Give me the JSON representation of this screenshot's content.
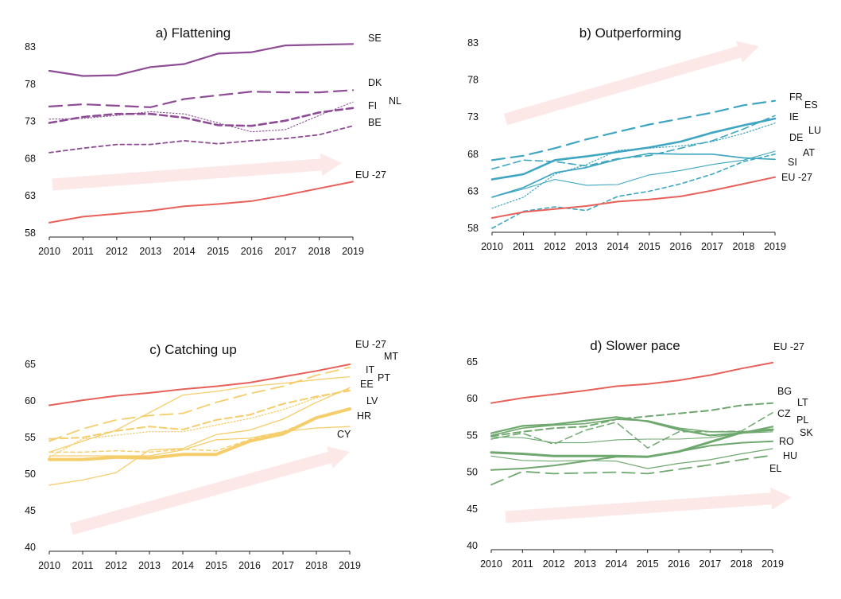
{
  "chart_data": [
    {
      "type": "line",
      "title": "a) Flattening",
      "x": [
        2010,
        2011,
        2012,
        2013,
        2014,
        2015,
        2016,
        2017,
        2018,
        2019
      ],
      "x_tick_labels": [
        "2010",
        "2011",
        "2012",
        "2013",
        "2014",
        "2015",
        "2016",
        "2017",
        "2018",
        "2019"
      ],
      "y_ticks": [
        58,
        63,
        68,
        73,
        78,
        83
      ],
      "ylim": [
        58,
        83
      ],
      "arrow_color": "#fde8e8",
      "series": [
        {
          "name": "SE",
          "color": "#8e4b96",
          "dash": "solid",
          "width": 2.2,
          "values": [
            79.8,
            79.1,
            79.2,
            80.3,
            80.7,
            82.1,
            82.3,
            83.2,
            83.3,
            83.4
          ]
        },
        {
          "name": "DK",
          "color": "#8e4b96",
          "dash": "longdash",
          "width": 2.2,
          "values": [
            75.0,
            75.3,
            75.1,
            74.9,
            76.0,
            76.5,
            77.0,
            76.9,
            76.9,
            77.2
          ]
        },
        {
          "name": "FI",
          "color": "#8e4b96",
          "dash": "dash",
          "width": 2.6,
          "values": [
            72.8,
            73.6,
            74.0,
            74.0,
            73.5,
            72.5,
            72.4,
            73.1,
            74.2,
            74.8
          ]
        },
        {
          "name": "NL",
          "color": "#8e4b96",
          "dash": "dot",
          "width": 1.1,
          "values": [
            73.3,
            73.4,
            73.8,
            74.3,
            74.0,
            72.8,
            71.6,
            71.9,
            73.8,
            75.6
          ]
        },
        {
          "name": "BE",
          "color": "#8e4b96",
          "dash": "shortdash",
          "width": 1.8,
          "values": [
            68.8,
            69.4,
            69.9,
            69.9,
            70.4,
            70.0,
            70.4,
            70.7,
            71.2,
            72.4
          ]
        },
        {
          "name": "EU -27",
          "color": "#e8605a",
          "dash": "solid",
          "width": 2.0,
          "values": [
            59.4,
            60.2,
            60.6,
            61.0,
            61.6,
            61.9,
            62.3,
            63.1,
            64.0,
            64.9
          ]
        }
      ],
      "labels": [
        "SE",
        "DK",
        "FI",
        "NL",
        "BE",
        "EU -27"
      ]
    },
    {
      "type": "line",
      "title": "b) Outperforming",
      "x": [
        2010,
        2011,
        2012,
        2013,
        2014,
        2015,
        2016,
        2017,
        2018,
        2019
      ],
      "x_tick_labels": [
        "2010",
        "2011",
        "2012",
        "2013",
        "2014",
        "2015",
        "2016",
        "2017",
        "2018",
        "2019"
      ],
      "y_ticks": [
        58,
        63,
        68,
        73,
        78,
        83
      ],
      "ylim": [
        58,
        83
      ],
      "arrow_color": "#fde8e8",
      "series": [
        {
          "name": "FR",
          "color": "#3ea6c0",
          "dash": "longdash",
          "width": 2.2,
          "values": [
            67.2,
            67.8,
            68.8,
            70.0,
            71.0,
            72.0,
            72.8,
            73.6,
            74.6,
            75.2
          ]
        },
        {
          "name": "ES",
          "color": "#3ea6c0",
          "dash": "shortdash",
          "width": 1.6,
          "values": [
            58.0,
            60.3,
            60.9,
            60.4,
            62.3,
            63.0,
            64.0,
            65.3,
            67.0,
            68.0
          ]
        },
        {
          "name": "IE",
          "color": "#3ea6c0",
          "dash": "dash",
          "width": 1.6,
          "values": [
            66.0,
            67.2,
            67.0,
            66.4,
            67.4,
            67.8,
            68.8,
            69.8,
            71.4,
            73.2
          ]
        },
        {
          "name": "DE",
          "color": "#3ea6c0",
          "dash": "solid",
          "width": 2.6,
          "values": [
            64.6,
            65.3,
            67.2,
            67.7,
            68.3,
            68.9,
            69.7,
            70.9,
            71.9,
            72.8
          ]
        },
        {
          "name": "LU",
          "color": "#3ea6c0",
          "dash": "dot",
          "width": 1.2,
          "values": [
            60.7,
            62.2,
            65.3,
            66.6,
            68.5,
            68.8,
            69.1,
            69.7,
            70.8,
            72.2
          ]
        },
        {
          "name": "AT",
          "color": "#3ea6c0",
          "dash": "solid",
          "width": 1.1,
          "values": [
            62.2,
            63.3,
            64.6,
            63.8,
            63.9,
            65.2,
            65.8,
            66.6,
            67.2,
            68.4
          ]
        },
        {
          "name": "SI",
          "color": "#3ea6c0",
          "dash": "solid",
          "width": 1.7,
          "values": [
            62.2,
            63.5,
            65.5,
            66.2,
            67.3,
            68.1,
            68.0,
            68.0,
            67.5,
            67.3
          ]
        },
        {
          "name": "EU -27",
          "color": "#e8605a",
          "dash": "solid",
          "width": 2.0,
          "values": [
            59.4,
            60.2,
            60.6,
            61.0,
            61.6,
            61.9,
            62.3,
            63.1,
            64.0,
            64.9
          ]
        }
      ],
      "labels": [
        "FR",
        "ES",
        "IE",
        "LU",
        "DE",
        "AT",
        "SI",
        "EU -27"
      ]
    },
    {
      "type": "line",
      "title": "c) Catching up",
      "x": [
        2010,
        2011,
        2012,
        2013,
        2014,
        2015,
        2016,
        2017,
        2018,
        2019
      ],
      "x_tick_labels": [
        "2010",
        "2011",
        "2012",
        "2013",
        "2014",
        "2015",
        "2016",
        "2017",
        "2018",
        "2019"
      ],
      "y_ticks": [
        40,
        45,
        50,
        55,
        60,
        65
      ],
      "ylim": [
        40,
        65
      ],
      "arrow_color": "#fde8e8",
      "series": [
        {
          "name": "EU -27",
          "color": "#e8605a",
          "dash": "solid",
          "width": 2.0,
          "values": [
            59.4,
            60.1,
            60.7,
            61.1,
            61.6,
            62.0,
            62.5,
            63.3,
            64.1,
            65.0
          ]
        },
        {
          "name": "MT",
          "color": "#f5cd6a",
          "dash": "longdash",
          "width": 1.8,
          "values": [
            54.5,
            56.2,
            57.4,
            58.0,
            58.3,
            59.8,
            61.0,
            62.0,
            63.5,
            64.6
          ]
        },
        {
          "name": "IT",
          "color": "#f5cd6a",
          "dash": "solid",
          "width": 1.3,
          "values": [
            53.0,
            54.5,
            56.0,
            58.4,
            60.8,
            61.3,
            62.0,
            62.4,
            62.9,
            63.3
          ]
        },
        {
          "name": "PT",
          "color": "#f5cd6a",
          "dash": "solid",
          "width": 1.3,
          "values": [
            48.5,
            49.2,
            50.2,
            53.3,
            53.5,
            55.4,
            56.0,
            57.5,
            59.8,
            61.8
          ]
        },
        {
          "name": "EE",
          "color": "#f5cd6a",
          "dash": "dot",
          "width": 1.3,
          "values": [
            52.3,
            54.8,
            55.3,
            55.8,
            55.8,
            56.7,
            57.6,
            58.8,
            60.4,
            61.6
          ]
        },
        {
          "name": "LV",
          "color": "#f5cd6a",
          "dash": "dash",
          "width": 2.0,
          "values": [
            54.8,
            55.0,
            55.9,
            56.5,
            56.1,
            57.4,
            58.1,
            59.6,
            60.6,
            61.4
          ]
        },
        {
          "name": "HR",
          "color": "#f5cd6a",
          "dash": "solid",
          "width": 4.0,
          "values": [
            52.0,
            52.0,
            52.3,
            52.2,
            52.7,
            52.7,
            54.5,
            55.5,
            57.7,
            58.9
          ]
        },
        {
          "name": "CY",
          "color": "#f5cd6a",
          "dash": "solid",
          "width": 1.3,
          "values": [
            52.5,
            52.5,
            52.5,
            52.5,
            53.3,
            54.7,
            54.9,
            55.8,
            56.3,
            56.5
          ]
        },
        {
          "name": "",
          "color": "#f5cd6a",
          "dash": "shortdash",
          "width": 1.5,
          "values": [
            53.0,
            53.0,
            53.2,
            53.0,
            53.4,
            53.2,
            54.7,
            55.8,
            57.6,
            58.8
          ]
        }
      ],
      "labels": [
        "EU -27",
        "MT",
        "IT",
        "PT",
        "EE",
        "LV",
        "HR",
        "CY"
      ]
    },
    {
      "type": "line",
      "title": "d) Slower pace",
      "x": [
        2010,
        2011,
        2012,
        2013,
        2014,
        2015,
        2016,
        2017,
        2018,
        2019
      ],
      "x_tick_labels": [
        "2010",
        "2011",
        "2012",
        "2013",
        "2014",
        "2015",
        "2016",
        "2017",
        "2018",
        "2019"
      ],
      "y_ticks": [
        40,
        45,
        50,
        55,
        60,
        65
      ],
      "ylim": [
        40,
        65
      ],
      "arrow_color": "#fde8e8",
      "series": [
        {
          "name": "EU -27",
          "color": "#e8605a",
          "dash": "solid",
          "width": 2.0,
          "values": [
            59.4,
            60.1,
            60.6,
            61.1,
            61.7,
            62.0,
            62.5,
            63.2,
            64.1,
            64.9
          ]
        },
        {
          "name": "BG",
          "color": "#6fa86f",
          "dash": "dash",
          "width": 2.0,
          "values": [
            54.9,
            55.5,
            56.0,
            56.2,
            57.2,
            57.6,
            58.0,
            58.4,
            59.1,
            59.4
          ]
        },
        {
          "name": "LT",
          "color": "#6fa86f",
          "dash": "dash",
          "width": 1.5,
          "values": [
            54.5,
            55.3,
            53.8,
            55.7,
            56.8,
            53.3,
            55.5,
            55.5,
            55.6,
            58.1
          ]
        },
        {
          "name": "CZ",
          "color": "#6fa86f",
          "dash": "solid",
          "width": 2.2,
          "values": [
            55.3,
            56.3,
            56.5,
            57.0,
            57.5,
            56.9,
            55.8,
            55.0,
            55.3,
            56.2
          ]
        },
        {
          "name": "PL",
          "color": "#6fa86f",
          "dash": "solid",
          "width": 1.6,
          "values": [
            55.0,
            56.0,
            56.4,
            56.6,
            57.2,
            57.0,
            56.0,
            55.5,
            55.5,
            55.7
          ]
        },
        {
          "name": "SK",
          "color": "#6fa86f",
          "dash": "solid",
          "width": 1.1,
          "values": [
            54.8,
            54.7,
            54.0,
            54.0,
            54.4,
            54.5,
            54.5,
            54.7,
            55.3,
            55.5
          ]
        },
        {
          "name": "RO",
          "color": "#6fa86f",
          "dash": "solid",
          "width": 3.0,
          "values": [
            52.7,
            52.5,
            52.2,
            52.2,
            52.2,
            52.1,
            52.8,
            54.1,
            55.4,
            55.8
          ]
        },
        {
          "name": "HU",
          "color": "#6fa86f",
          "dash": "solid",
          "width": 1.2,
          "values": [
            52.2,
            51.6,
            51.5,
            51.6,
            51.5,
            50.5,
            51.2,
            51.7,
            52.5,
            53.2
          ]
        },
        {
          "name": "EL",
          "color": "#6fa86f",
          "dash": "longdash",
          "width": 1.8,
          "values": [
            48.3,
            50.1,
            49.8,
            49.9,
            50.0,
            49.8,
            50.4,
            51.0,
            51.7,
            52.3
          ]
        },
        {
          "name": "",
          "color": "#6fa86f",
          "dash": "solid",
          "width": 2.0,
          "values": [
            50.3,
            50.5,
            50.9,
            51.5,
            52.1,
            52.1,
            52.8,
            53.6,
            54.0,
            54.2
          ]
        }
      ],
      "labels": [
        "EU -27",
        "BG",
        "LT",
        "CZ",
        "PL",
        "SK",
        "RO",
        "HU",
        "EL"
      ]
    }
  ]
}
